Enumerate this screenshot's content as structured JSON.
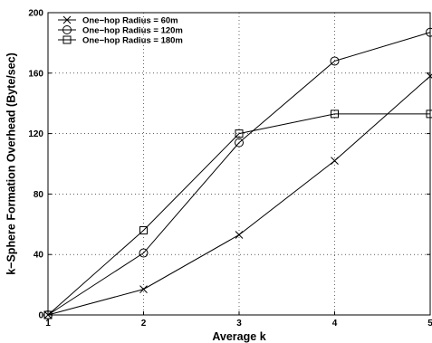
{
  "chart_data": {
    "type": "line",
    "title": "",
    "xlabel": "Average k",
    "ylabel": "k−Sphere Formation Overhead (Byte/sec)",
    "x": [
      1,
      2,
      3,
      4,
      5
    ],
    "xlim": [
      1,
      5
    ],
    "ylim": [
      0,
      200
    ],
    "x_ticks": [
      "1",
      "2",
      "3",
      "4",
      "5"
    ],
    "y_ticks": [
      "0",
      "40",
      "80",
      "120",
      "160",
      "200"
    ],
    "grid": true,
    "legend_position": "top-left",
    "series": [
      {
        "name": "One−hop Radius =  60m",
        "marker": "x",
        "values": [
          0,
          17,
          53,
          102,
          158
        ]
      },
      {
        "name": "One−hop Radius = 120m",
        "marker": "circle",
        "values": [
          0,
          41,
          114,
          168,
          187
        ]
      },
      {
        "name": "One−hop Radius = 180m",
        "marker": "square",
        "values": [
          0,
          56,
          120,
          133,
          133
        ]
      }
    ]
  }
}
